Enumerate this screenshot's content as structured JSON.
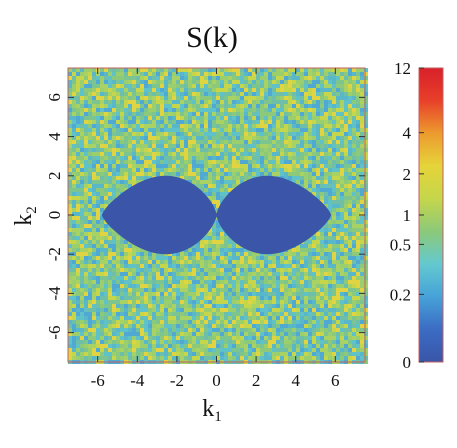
{
  "chart_data": {
    "type": "heatmap",
    "title": "S(k)",
    "xlabel": "k",
    "xlabel_sub": "1",
    "ylabel": "k",
    "ylabel_sub": "2",
    "xlim": [
      -7.5,
      7.5
    ],
    "ylim": [
      -7.5,
      7.5
    ],
    "x_ticks": [
      -6,
      -4,
      -2,
      0,
      2,
      4,
      6
    ],
    "y_ticks": [
      -6,
      -4,
      -2,
      0,
      2,
      4,
      6
    ],
    "x_tick_labels": [
      "-6",
      "-4",
      "-2",
      "0",
      "2",
      "4",
      "6"
    ],
    "y_tick_labels": [
      "-6",
      "-4",
      "-2",
      "0",
      "2",
      "4",
      "6"
    ],
    "colorbar": {
      "ticks": [
        0,
        0.2,
        0.5,
        1,
        2,
        4,
        12
      ],
      "tick_labels": [
        "0",
        "0.2",
        "0.5",
        "1",
        "2",
        "4",
        "12"
      ],
      "colors": [
        "#3a55a8",
        "#3b6cc4",
        "#46a2d8",
        "#63c9cf",
        "#8cc97a",
        "#c5d64b",
        "#e6d43a",
        "#ec9b2e",
        "#e8402a",
        "#d8202a"
      ]
    },
    "exclusion_region": {
      "description": "figure-eight shaped region where S(k)=0",
      "x_extent": [
        -5.8,
        5.8
      ],
      "y_extent": [
        -2.0,
        2.0
      ],
      "lobe_centers": [
        [
          -3.0,
          0
        ],
        [
          3.0,
          0
        ]
      ],
      "lobe_half_height": 2.0,
      "value": 0
    },
    "background_value_range": [
      0.2,
      2
    ],
    "grid": false
  }
}
